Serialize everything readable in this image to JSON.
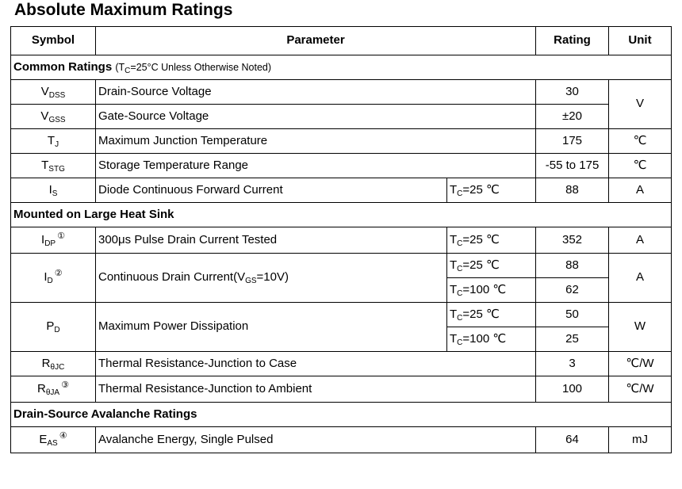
{
  "title": "Absolute Maximum Ratings",
  "headers": {
    "symbol": "Symbol",
    "parameter": "Parameter",
    "rating": "Rating",
    "unit": "Unit"
  },
  "sections": {
    "common": {
      "label": "Common Ratings",
      "note_open": "(T",
      "note_sub": "C",
      "note_rest": "=25°C Unless Otherwise Noted)"
    },
    "heatsink": {
      "label": "Mounted on Large Heat Sink"
    },
    "avalanche": {
      "label": "Drain-Source Avalanche Ratings"
    }
  },
  "rows": {
    "vdss": {
      "sym": "V",
      "sub": "DSS",
      "param": "Drain-Source Voltage",
      "rating": "30"
    },
    "vgss": {
      "sym": "V",
      "sub": "GSS",
      "param": "Gate-Source Voltage",
      "rating": "±20"
    },
    "volt_unit": "V",
    "tj": {
      "sym": "T",
      "sub": "J",
      "param": "Maximum Junction Temperature",
      "rating": "175",
      "unit": "℃"
    },
    "tstg": {
      "sym": "T",
      "sub": "STG",
      "param": "Storage Temperature Range",
      "rating": "-55 to 175",
      "unit": "℃"
    },
    "is": {
      "sym": "I",
      "sub": "S",
      "param": "Diode Continuous Forward Current",
      "cond_t": "T",
      "cond_sub": "C",
      "cond_rest": "=25 ℃",
      "rating": "88",
      "unit": "A"
    },
    "idp": {
      "sym": "I",
      "sub": "DP",
      "note": "①",
      "param": "300μs Pulse Drain Current Tested",
      "cond_t": "T",
      "cond_sub": "C",
      "cond_rest": "=25 ℃",
      "rating": "352",
      "unit": "A"
    },
    "id": {
      "sym": "I",
      "sub": "D",
      "note": "②",
      "param_a": "Continuous Drain Current(V",
      "param_sub": "GS",
      "param_b": "=10V)",
      "cond1_t": "T",
      "cond1_sub": "C",
      "cond1_rest": "=25 ℃",
      "rating1": "88",
      "cond2_t": "T",
      "cond2_sub": "C",
      "cond2_rest": "=100 ℃",
      "rating2": "62",
      "unit": "A"
    },
    "pd": {
      "sym": "P",
      "sub": "D",
      "param": "Maximum Power Dissipation",
      "cond1_t": "T",
      "cond1_sub": "C",
      "cond1_rest": "=25 ℃",
      "rating1": "50",
      "cond2_t": "T",
      "cond2_sub": "C",
      "cond2_rest": "=100 ℃",
      "rating2": "25",
      "unit": "W"
    },
    "rjc": {
      "sym": "R",
      "sub": "θJC",
      "param": "Thermal Resistance-Junction to Case",
      "rating": "3",
      "unit": "℃/W"
    },
    "rja": {
      "sym": "R",
      "sub": "θJA",
      "note": "③",
      "param": "Thermal Resistance-Junction to Ambient",
      "rating": "100",
      "unit": "℃/W"
    },
    "eas": {
      "sym": "E",
      "sub": "AS",
      "note": "④",
      "param": "Avalanche Energy, Single Pulsed",
      "rating": "64",
      "unit": "mJ"
    }
  }
}
